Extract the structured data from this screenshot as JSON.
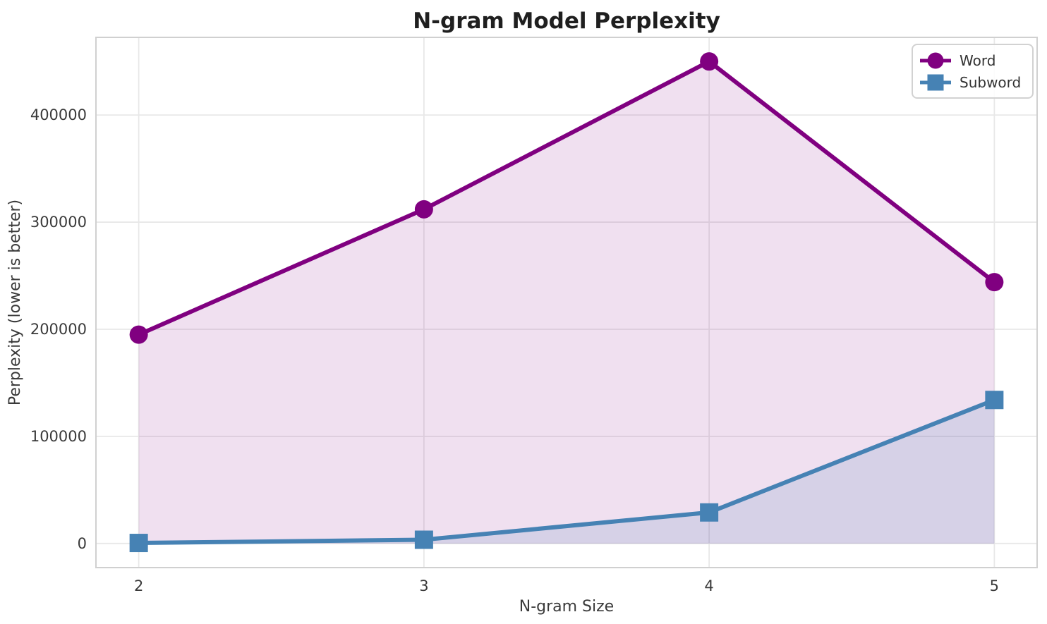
{
  "chart_data": {
    "type": "line",
    "title": "N-gram Model Perplexity",
    "xlabel": "N-gram Size",
    "ylabel": "Perplexity (lower is better)",
    "x": [
      2,
      3,
      4,
      5
    ],
    "xticks": [
      2,
      3,
      4,
      5
    ],
    "xtick_labels": [
      "2",
      "3",
      "4",
      "5"
    ],
    "yticks": [
      0,
      100000,
      200000,
      300000,
      400000
    ],
    "ytick_labels": [
      "0",
      "100000",
      "200000",
      "300000",
      "400000"
    ],
    "xlim": [
      1.85,
      5.15
    ],
    "ylim": [
      -22500,
      472500
    ],
    "grid": true,
    "legend_position": "upper right",
    "background_color": "#ffffff",
    "grid_color": "#e8e8e8",
    "spine_color": "#d0d0d0",
    "text_color": "#3a3a3a",
    "series": [
      {
        "name": "Word",
        "color": "#800080",
        "marker": "circle",
        "fill_alpha": 0.12,
        "values": [
          195000,
          312000,
          450000,
          244000
        ]
      },
      {
        "name": "Subword",
        "color": "#4682B4",
        "marker": "square",
        "fill_alpha": 0.15,
        "values": [
          500,
          3500,
          29000,
          134000
        ]
      }
    ]
  }
}
